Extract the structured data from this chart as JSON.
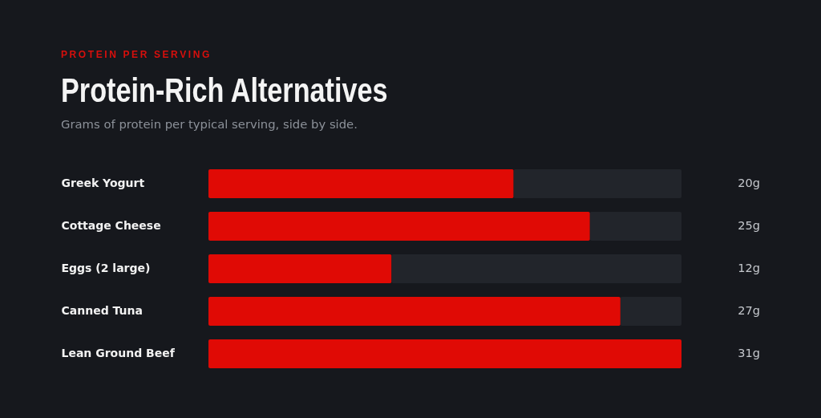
{
  "chart_data": {
    "type": "bar",
    "orientation": "horizontal",
    "stacked": true,
    "title": "Protein-Rich Alternatives",
    "subtitle": "Grams of protein per typical serving, side by side.",
    "annotations": [
      "PROTEIN PER SERVING"
    ],
    "categories": [
      "Greek Yogurt",
      "Cottage Cheese",
      "Eggs (2 large)",
      "Canned Tuna",
      "Lean Ground Beef"
    ],
    "series": [
      {
        "color": "#e00a05",
        "values": [
          20,
          25,
          12,
          27,
          31
        ],
        "value_labels": [
          "20g",
          "25g",
          "12g",
          "27g",
          "31g"
        ]
      },
      {
        "color": "#22252b",
        "values": [
          11,
          6,
          19,
          4,
          0
        ]
      }
    ],
    "xlim": [
      0,
      31
    ],
    "tick_labels": "y"
  }
}
